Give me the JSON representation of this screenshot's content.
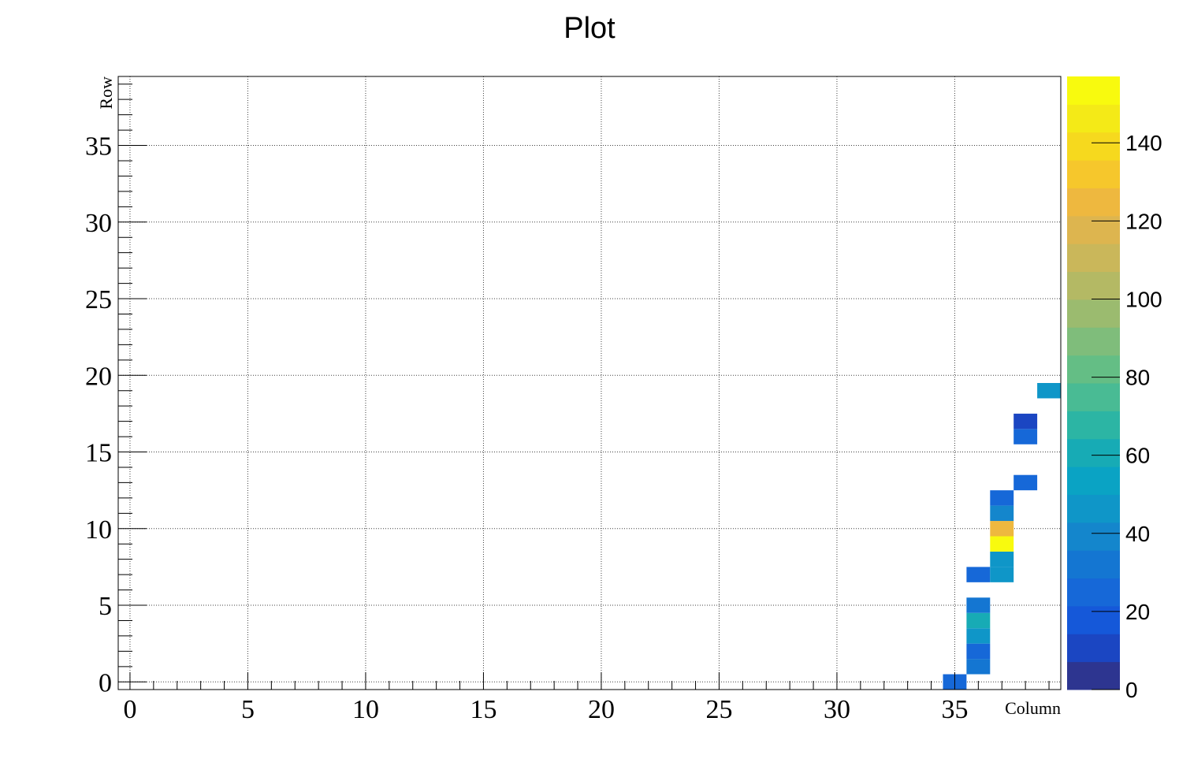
{
  "chart_data": {
    "type": "heatmap",
    "title": "Plot",
    "xlabel": "Column",
    "ylabel": "Row",
    "xlim": [
      -0.5,
      39.5
    ],
    "ylim": [
      -0.5,
      39.5
    ],
    "xticks": [
      0,
      5,
      10,
      15,
      20,
      25,
      30,
      35
    ],
    "yticks": [
      0,
      5,
      10,
      15,
      20,
      25,
      30,
      35
    ],
    "grid": true,
    "colorbar": {
      "range": [
        0,
        157
      ],
      "ticks": [
        0,
        20,
        40,
        60,
        80,
        100,
        120,
        140
      ],
      "colors": [
        "#2d3590",
        "#1b46c2",
        "#1558d9",
        "#1668d8",
        "#1476d2",
        "#1486cc",
        "#0f96c8",
        "#0aa3c4",
        "#17abb5",
        "#2cb5a4",
        "#49bb94",
        "#64be85",
        "#7fbd7b",
        "#9bbb6f",
        "#b4b964",
        "#cab75a",
        "#ddb54f",
        "#eeb83f",
        "#f6c72c",
        "#f6d91e",
        "#f4ea17",
        "#f8fa0e"
      ]
    },
    "cells": [
      {
        "x": 35,
        "y": 0,
        "value": 28
      },
      {
        "x": 36,
        "y": 1,
        "value": 35
      },
      {
        "x": 36,
        "y": 2,
        "value": 22
      },
      {
        "x": 36,
        "y": 3,
        "value": 44
      },
      {
        "x": 36,
        "y": 4,
        "value": 58
      },
      {
        "x": 36,
        "y": 5,
        "value": 32
      },
      {
        "x": 36,
        "y": 7,
        "value": 27
      },
      {
        "x": 37,
        "y": 7,
        "value": 45
      },
      {
        "x": 37,
        "y": 8,
        "value": 46
      },
      {
        "x": 37,
        "y": 9,
        "value": 157
      },
      {
        "x": 37,
        "y": 10,
        "value": 122
      },
      {
        "x": 37,
        "y": 11,
        "value": 38
      },
      {
        "x": 37,
        "y": 12,
        "value": 28
      },
      {
        "x": 38,
        "y": 13,
        "value": 22
      },
      {
        "x": 38,
        "y": 16,
        "value": 22
      },
      {
        "x": 38,
        "y": 17,
        "value": 14
      },
      {
        "x": 39,
        "y": 19,
        "value": 44
      }
    ]
  }
}
